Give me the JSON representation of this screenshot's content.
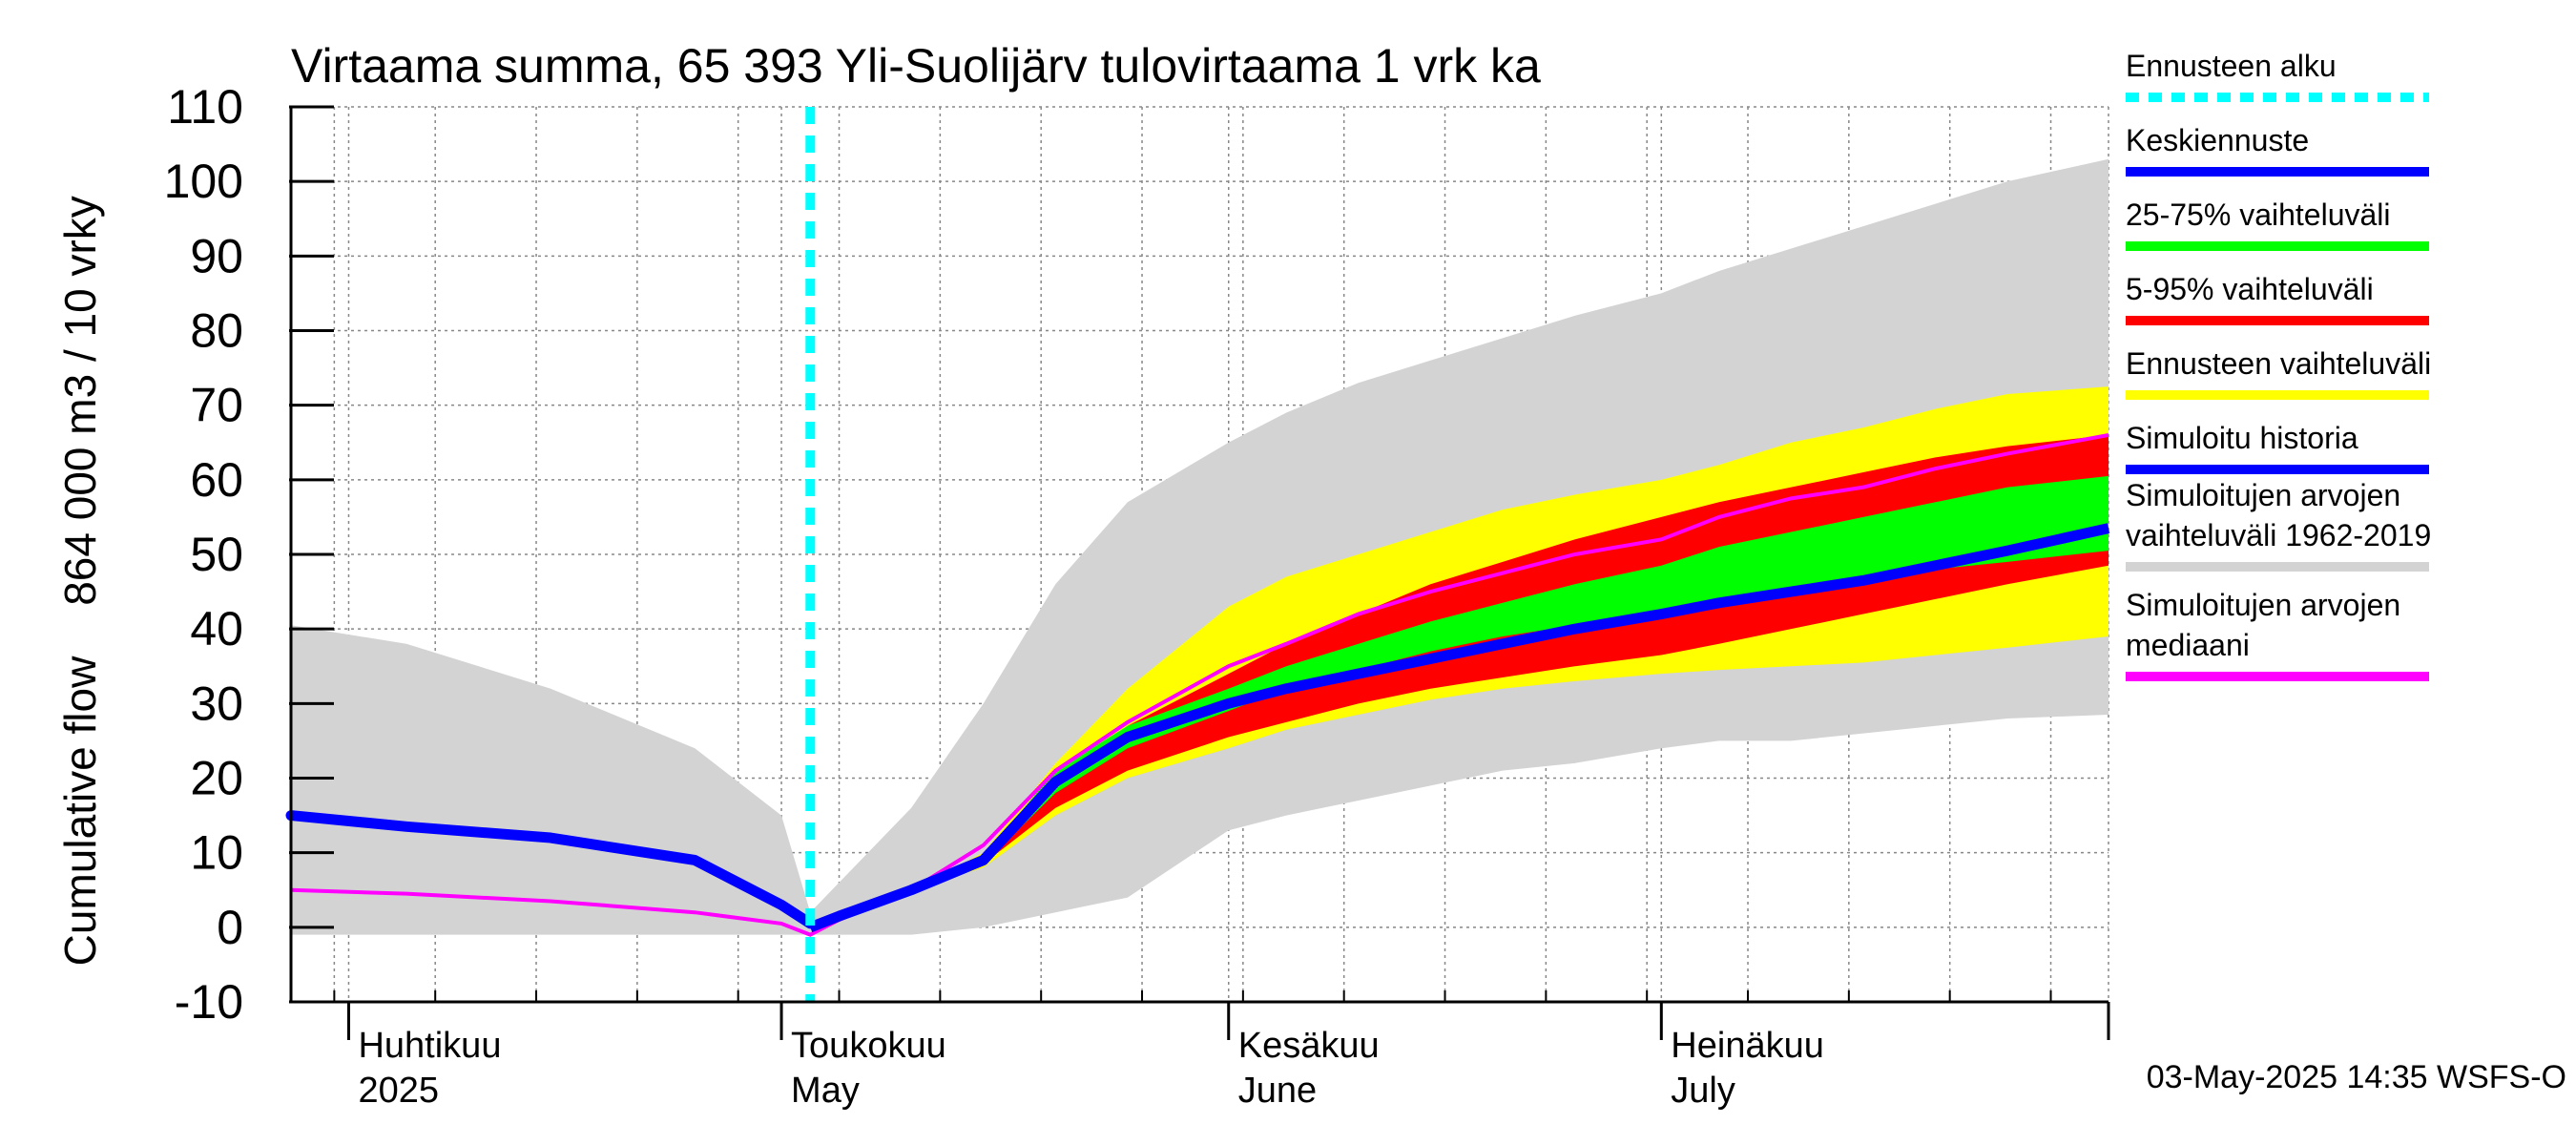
{
  "chart_data": {
    "type": "area",
    "title": "Virtaama summa, 65 393 Yli-Suolijärv tulovirtaama 1 vrk ka",
    "ylabel_line1": "864 000 m3 / 10 vrky",
    "ylabel_line2": "Cumulative flow",
    "ylim": [
      -10,
      110
    ],
    "yticks": [
      -10,
      0,
      10,
      20,
      30,
      40,
      50,
      60,
      70,
      80,
      90,
      100,
      110
    ],
    "xlim": [
      "2025-03-28",
      "2025-08-01"
    ],
    "month_labels": [
      {
        "date": "2025-04-01",
        "fi": "Huhtikuu",
        "en": "2025"
      },
      {
        "date": "2025-05-01",
        "fi": "Toukokuu",
        "en": "May"
      },
      {
        "date": "2025-06-01",
        "fi": "Kesäkuu",
        "en": "June"
      },
      {
        "date": "2025-07-01",
        "fi": "Heinäkuu",
        "en": "July"
      }
    ],
    "forecast_start": "2025-05-03",
    "grid": true,
    "legend_position": "right",
    "legend": [
      {
        "label": "Ennusteen alku",
        "color": "#00ffff",
        "style": "dashed"
      },
      {
        "label": "Keskiennuste",
        "color": "#0000ff",
        "style": "solid"
      },
      {
        "label": "25-75% vaihteluväli",
        "color": "#00ff00",
        "style": "solid"
      },
      {
        "label": "5-95% vaihteluväli",
        "color": "#ff0000",
        "style": "solid"
      },
      {
        "label": "Ennusteen vaihteluväli",
        "color": "#ffff00",
        "style": "solid"
      },
      {
        "label": "Simuloitu historia",
        "color": "#0000ff",
        "style": "solid"
      },
      {
        "label": "Simuloitujen arvojen vaihteluväli 1962-2019",
        "color": "#d3d3d3",
        "style": "solid"
      },
      {
        "label": "Simuloitujen arvojen mediaani",
        "color": "#ff00ff",
        "style": "solid"
      }
    ],
    "x": [
      "2025-03-28",
      "2025-04-05",
      "2025-04-15",
      "2025-04-25",
      "2025-05-01",
      "2025-05-03",
      "2025-05-05",
      "2025-05-10",
      "2025-05-15",
      "2025-05-20",
      "2025-05-25",
      "2025-06-01",
      "2025-06-05",
      "2025-06-10",
      "2025-06-15",
      "2025-06-20",
      "2025-06-25",
      "2025-07-01",
      "2025-07-05",
      "2025-07-10",
      "2025-07-15",
      "2025-07-20",
      "2025-07-25",
      "2025-08-01"
    ],
    "series": [
      {
        "name": "Simuloitujen arvojen vaihteluväli 1962-2019",
        "kind": "band",
        "color": "#d3d3d3",
        "low": [
          -1,
          -1,
          -1,
          -1,
          -1,
          -1,
          -1,
          -1,
          0,
          2,
          4,
          13,
          15,
          17,
          19,
          21,
          22,
          24,
          25,
          25,
          26,
          27,
          28,
          28.5
        ],
        "high": [
          40.5,
          38,
          32,
          24,
          15,
          2,
          6,
          16,
          30,
          46,
          57,
          65,
          69,
          73,
          76,
          79,
          82,
          85,
          88,
          91,
          94,
          97,
          100,
          103
        ]
      },
      {
        "name": "Ennusteen vaihteluväli",
        "kind": "band",
        "color": "#ffff00",
        "low": [
          null,
          null,
          null,
          null,
          null,
          0,
          1.5,
          5,
          8,
          15,
          20,
          24,
          26.5,
          28.5,
          30.5,
          32,
          33,
          34,
          34.5,
          35,
          35.5,
          36.5,
          37.5,
          39
        ]
      },
      {
        "name": "5-95% vaihteluväli",
        "kind": "band",
        "color": "#ff0000",
        "low": [
          null,
          null,
          null,
          null,
          null,
          0,
          1.5,
          5,
          8.5,
          16,
          21,
          25.5,
          27.5,
          30,
          32,
          33.5,
          35,
          36.5,
          38,
          40,
          42,
          44,
          46,
          48.5
        ],
        "high": [
          null,
          null,
          null,
          null,
          null,
          0,
          1.5,
          5,
          9.5,
          20,
          27,
          34,
          38,
          42,
          46,
          49,
          52,
          55,
          57,
          59,
          61,
          63,
          64.5,
          66
        ]
      },
      {
        "name": "25-75% vaihteluväli",
        "kind": "band",
        "color": "#00ff00",
        "low": [
          null,
          null,
          null,
          null,
          null,
          0,
          1.5,
          5,
          8.5,
          18,
          24,
          29,
          32,
          34.5,
          37,
          39,
          40.5,
          42,
          43.5,
          45,
          46.5,
          48,
          49,
          50.5
        ],
        "high": [
          null,
          null,
          null,
          null,
          null,
          0,
          1.5,
          5,
          9.5,
          21,
          27,
          32,
          35,
          38,
          41,
          43.5,
          46,
          48.5,
          51,
          53,
          55,
          57,
          59,
          60.5
        ]
      },
      {
        "name": "Ennusteen vaihteluväli",
        "kind": "band-upper",
        "color": "#ffff00",
        "high": [
          null,
          null,
          null,
          null,
          null,
          0,
          1.5,
          5,
          10,
          22,
          32,
          43,
          47,
          50,
          53,
          56,
          58,
          60,
          62,
          65,
          67,
          69.5,
          71.5,
          72.5
        ]
      },
      {
        "name": "Simuloitu historia",
        "kind": "line",
        "color": "#0000ff",
        "values": [
          15,
          13.5,
          12,
          9,
          3,
          0.5,
          null,
          null,
          null,
          null,
          null,
          null,
          null,
          null,
          null,
          null,
          null,
          null,
          null,
          null,
          null,
          null,
          null,
          null
        ]
      },
      {
        "name": "Keskiennuste",
        "kind": "line",
        "color": "#0000ff",
        "values": [
          null,
          null,
          null,
          null,
          null,
          0,
          1.5,
          5,
          9,
          19.5,
          25.5,
          30,
          32,
          34,
          36,
          38,
          40,
          42,
          43.5,
          45,
          46.5,
          48.5,
          50.5,
          53.5
        ]
      },
      {
        "name": "Simuloitujen arvojen mediaani",
        "kind": "line",
        "color": "#ff00ff",
        "values": [
          5,
          4.5,
          3.5,
          2,
          0.5,
          -1,
          1,
          5,
          11,
          21,
          27.5,
          35,
          38,
          42,
          45,
          47.5,
          50,
          52,
          55,
          57.5,
          59,
          61.5,
          63.5,
          66
        ]
      }
    ]
  },
  "footer": {
    "timestamp": "03-May-2025 14:35 WSFS-O"
  }
}
